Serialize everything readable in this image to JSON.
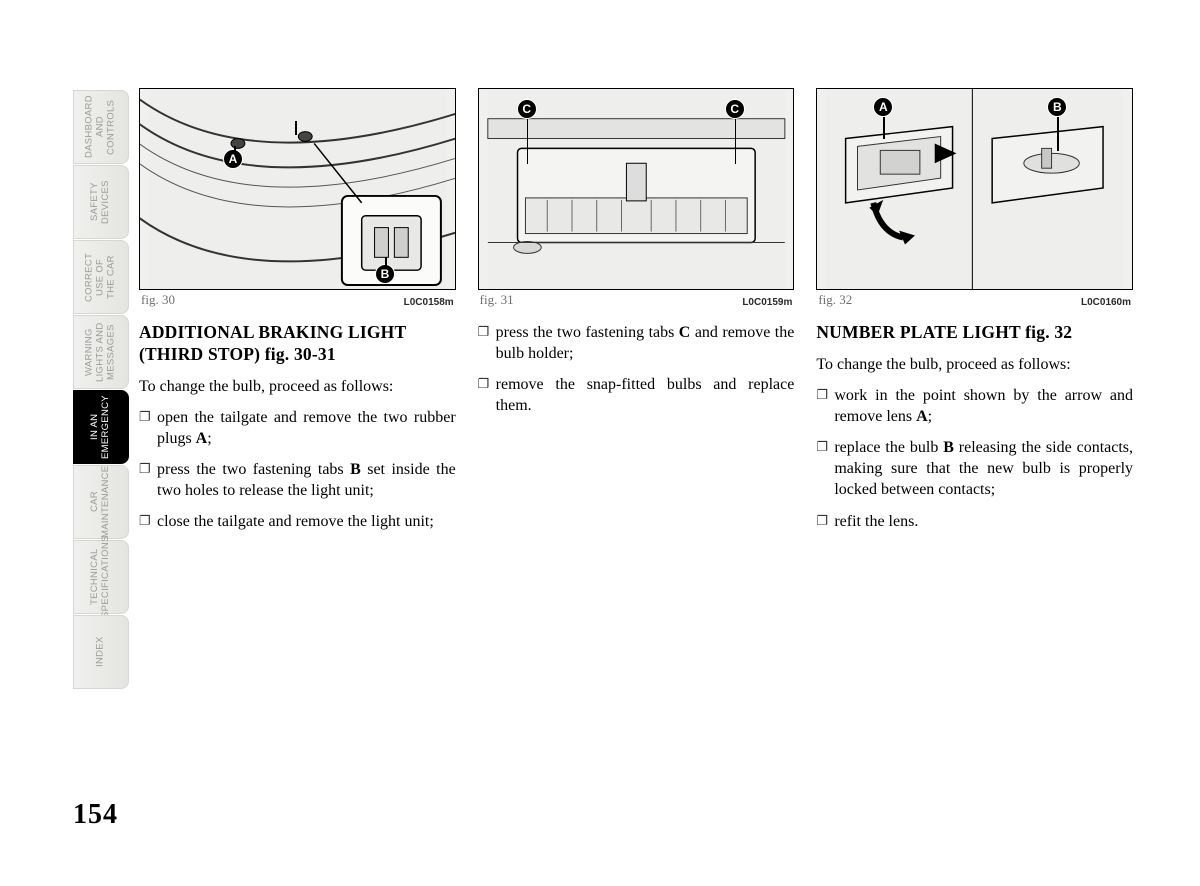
{
  "page_number": "154",
  "tabs": [
    {
      "label": "DASHBOARD\nAND CONTROLS",
      "active": false
    },
    {
      "label": "SAFETY\nDEVICES",
      "active": false
    },
    {
      "label": "CORRECT\nUSE OF\nTHE CAR",
      "active": false
    },
    {
      "label": "WARNING\nLIGHTS AND\nMESSAGES",
      "active": false
    },
    {
      "label": "IN AN\nEMERGENCY",
      "active": true
    },
    {
      "label": "CAR\nMAINTENANCE",
      "active": false
    },
    {
      "label": "TECHNICAL\nSPECIFICATIONS",
      "active": false
    },
    {
      "label": "INDEX",
      "active": false
    }
  ],
  "col1": {
    "fig_label": "fig. 30",
    "fig_code": "L0C0158m",
    "callouts": {
      "A": "A",
      "B": "B"
    },
    "heading": "ADDITIONAL BRAKING LIGHT (THIRD STOP) fig. 30-31",
    "p1": "To change the bulb, proceed as follows:",
    "b1_pre": "open the tailgate and remove the two rubber plugs ",
    "b1_bold": "A",
    "b1_post": ";",
    "b2_pre": "press the two fastening tabs ",
    "b2_bold": "B",
    "b2_post": " set inside the two holes to release the light unit;",
    "b3": "close the tailgate and remove the light unit;"
  },
  "col2": {
    "fig_label": "fig. 31",
    "fig_code": "L0C0159m",
    "callouts": {
      "C": "C"
    },
    "b1_pre": "press the two fastening tabs ",
    "b1_bold": "C",
    "b1_post": " and remove the bulb holder;",
    "b2": "remove the snap-fitted bulbs and replace them."
  },
  "col3": {
    "fig_label": "fig. 32",
    "fig_code": "L0C0160m",
    "callouts": {
      "A": "A",
      "B": "B"
    },
    "heading": "NUMBER PLATE LIGHT fig. 32",
    "p1": "To change the bulb, proceed as follows:",
    "b1_pre": "work in the point shown by the arrow and  remove lens ",
    "b1_bold": "A",
    "b1_post": ";",
    "b2_pre": "replace the bulb ",
    "b2_bold": "B",
    "b2_post": " releasing the side contacts, making sure that the new bulb is properly locked between contacts;",
    "b3": "refit the lens."
  }
}
